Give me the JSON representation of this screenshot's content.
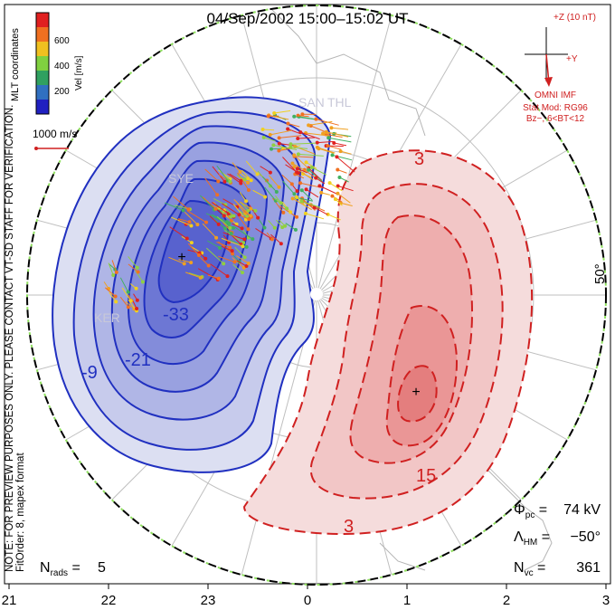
{
  "title": "04/Sep/2002 15:00–15:02 UT",
  "side_note": "NOTE: FOR PREVIEW PURPOSES ONLY. PLEASE CONTACT VT-SD STAFF FOR VERIFICATION.",
  "fit_order": "FitOrder: 8, mapex format",
  "coord_label": "MLT coordinates",
  "velocity_bar": {
    "title": "Vel [m/s]",
    "ticks": [
      "600",
      "400",
      "200"
    ],
    "colors": [
      "#e02020",
      "#f07020",
      "#f0c020",
      "#80d040",
      "#30a060",
      "#3070c0",
      "#2020c0"
    ]
  },
  "ref_vector_label": "1000 m/s",
  "imf": {
    "z_label": "+Z (10 nT)",
    "y_label": "+Y",
    "source": "OMNI IMF",
    "stat_mod": "Stat Mod: RG96",
    "condition": "Bz−, 6<BT<12",
    "color": "#d02020"
  },
  "stats": {
    "phi_pc": "74 kV",
    "lambda_hm": "−50°",
    "n_vc": "361",
    "n_rads": "5"
  },
  "latitude_label": "50°",
  "station_labels": [
    "SAN",
    "THL",
    "SYE",
    "KER"
  ],
  "chart_data": {
    "type": "convection map",
    "x_ticks": [
      "21",
      "22",
      "23",
      "0",
      "1",
      "2",
      "3"
    ],
    "negative_cell": {
      "color": "#2030c0",
      "contour_labels": [
        "-33",
        "-21",
        "-9"
      ],
      "levels_kV": [
        -39,
        -33,
        -27,
        -21,
        -15,
        -9,
        -3
      ]
    },
    "positive_cell": {
      "color": "#d02020",
      "contour_labels": [
        "3",
        "15",
        "3"
      ],
      "levels_kV": [
        3,
        9,
        15,
        21,
        27
      ]
    },
    "potential_min_marker": "+",
    "potential_max_marker": "+"
  }
}
